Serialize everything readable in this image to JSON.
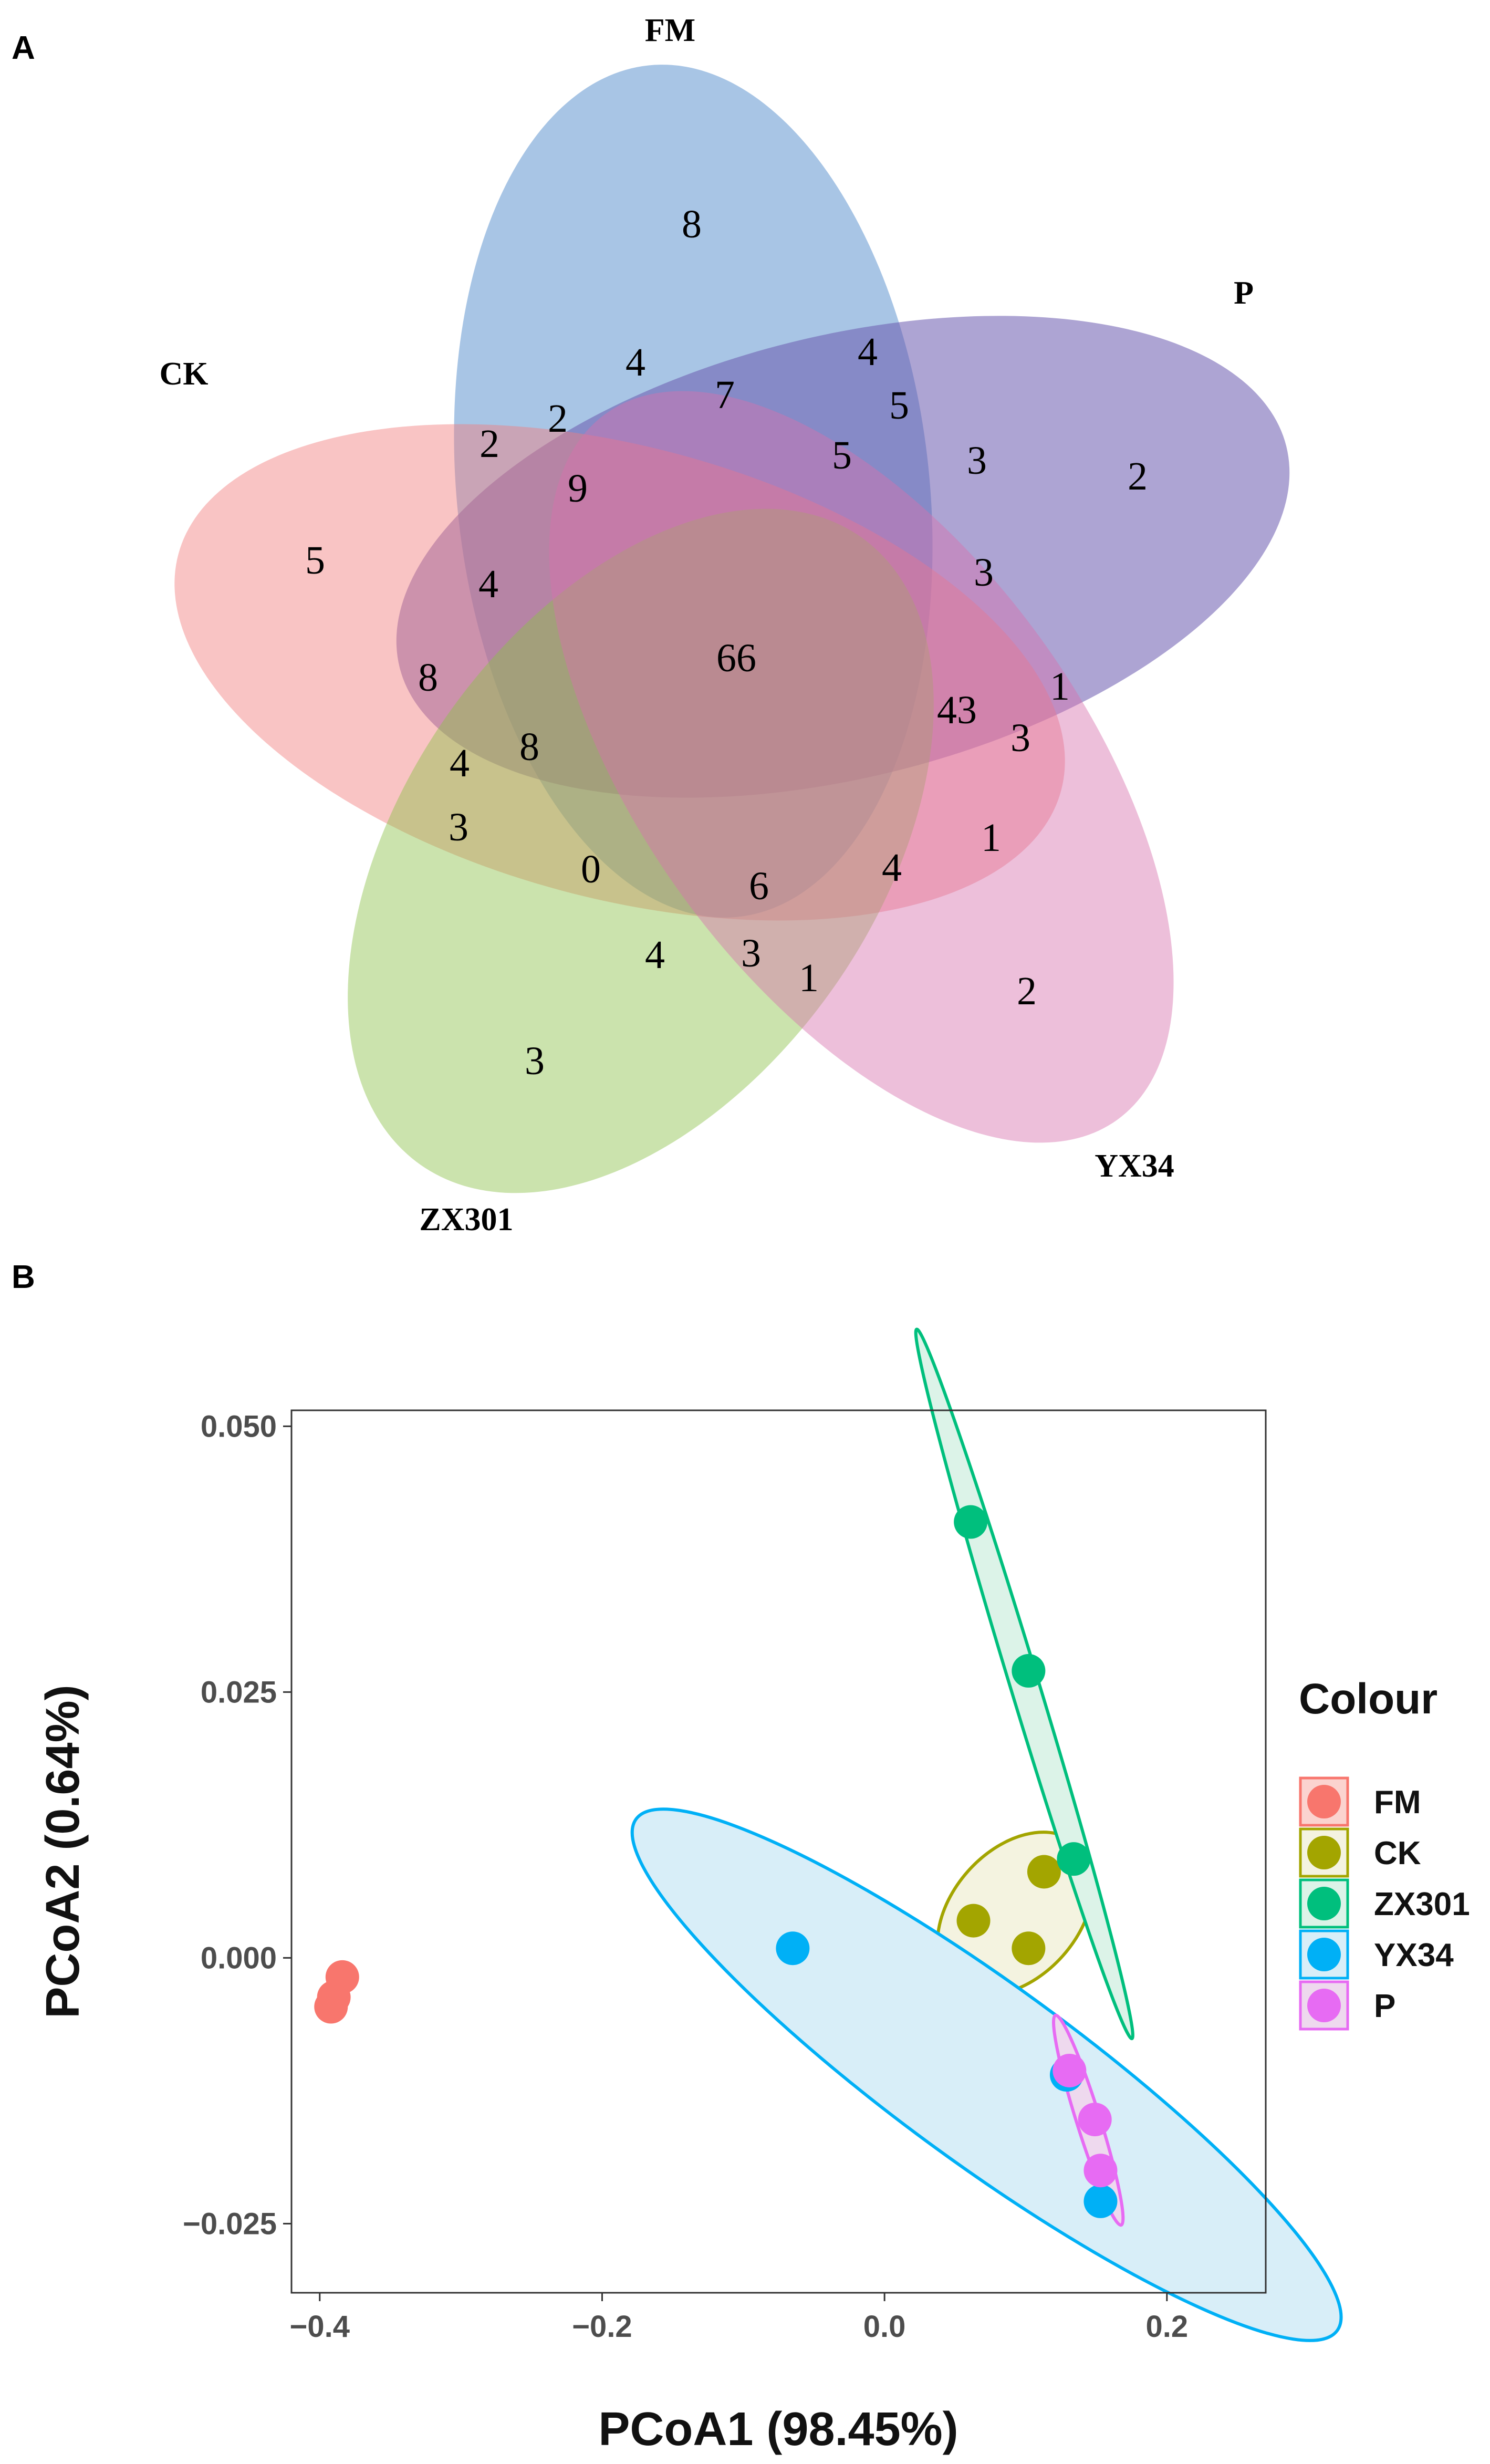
{
  "panel_a_label": "A",
  "panel_b_label": "B",
  "chart_data": [
    {
      "type": "venn",
      "sets": [
        {
          "name": "FM",
          "color": "#4a86c8"
        },
        {
          "name": "P",
          "color": "#6a5aae"
        },
        {
          "name": "CK",
          "color": "#f17c7c"
        },
        {
          "name": "ZX301",
          "color": "#8cc24a"
        },
        {
          "name": "YX34",
          "color": "#d870ac"
        }
      ],
      "region_values": [
        {
          "id": "fm-only",
          "value": "8"
        },
        {
          "id": "p-only",
          "value": "2"
        },
        {
          "id": "ck-only",
          "value": "5"
        },
        {
          "id": "zx301-only",
          "value": "3"
        },
        {
          "id": "yx34-only",
          "value": "2"
        },
        {
          "id": "core",
          "value": "66"
        },
        {
          "id": "r01",
          "value": "4"
        },
        {
          "id": "r02",
          "value": "4"
        },
        {
          "id": "r03",
          "value": "7"
        },
        {
          "id": "r04",
          "value": "5"
        },
        {
          "id": "r05",
          "value": "2"
        },
        {
          "id": "r06",
          "value": "2"
        },
        {
          "id": "r07",
          "value": "9"
        },
        {
          "id": "r08",
          "value": "5"
        },
        {
          "id": "r09",
          "value": "3"
        },
        {
          "id": "r10",
          "value": "3"
        },
        {
          "id": "r11",
          "value": "4"
        },
        {
          "id": "r12",
          "value": "8"
        },
        {
          "id": "r13",
          "value": "1"
        },
        {
          "id": "r14",
          "value": "43"
        },
        {
          "id": "r15",
          "value": "3"
        },
        {
          "id": "r16",
          "value": "4"
        },
        {
          "id": "r17",
          "value": "8"
        },
        {
          "id": "r18",
          "value": "3"
        },
        {
          "id": "r19",
          "value": "1"
        },
        {
          "id": "r20",
          "value": "0"
        },
        {
          "id": "r21",
          "value": "6"
        },
        {
          "id": "r22",
          "value": "4"
        },
        {
          "id": "r23",
          "value": "4"
        },
        {
          "id": "r24",
          "value": "3"
        },
        {
          "id": "r25",
          "value": "1"
        }
      ]
    },
    {
      "type": "scatter",
      "xlabel": "PCoA1 (98.45%)",
      "ylabel": "PCoA2 (0.64%)",
      "xlim": [
        -0.42,
        0.27
      ],
      "ylim": [
        -0.0315,
        0.0515
      ],
      "xticks": [
        -0.4,
        -0.2,
        0.0,
        0.2
      ],
      "xtick_labels": [
        "−0.4",
        "−0.2",
        "0.0",
        "0.2"
      ],
      "yticks": [
        0.05,
        0.025,
        0.0,
        -0.025
      ],
      "ytick_labels": [
        "0.050",
        "0.025",
        "0.000",
        "−0.025"
      ],
      "legend_title": "Colour",
      "legend_position": "right",
      "series": [
        {
          "name": "FM",
          "color": "#f8766d",
          "fill": "#fbd3cf",
          "points": [
            [
              -0.392,
              -0.0046
            ],
            [
              -0.39,
              -0.0037
            ],
            [
              -0.384,
              -0.0018
            ]
          ]
        },
        {
          "name": "CK",
          "color": "#a3a500",
          "fill": "#f4f3e0",
          "points": [
            [
              0.063,
              0.0035
            ],
            [
              0.102,
              0.0009
            ],
            [
              0.113,
              0.0081
            ]
          ]
        },
        {
          "name": "ZX301",
          "color": "#00bf7d",
          "fill": "#dcf3e8",
          "points": [
            [
              0.061,
              0.041
            ],
            [
              0.102,
              0.027
            ],
            [
              0.134,
              0.0093
            ]
          ]
        },
        {
          "name": "YX34",
          "color": "#00b0f6",
          "fill": "#d8eef8",
          "points": [
            [
              -0.065,
              0.0009
            ],
            [
              0.129,
              -0.011
            ],
            [
              0.153,
              -0.0229
            ]
          ]
        },
        {
          "name": "P",
          "color": "#e76bf3",
          "fill": "#eed9ee",
          "points": [
            [
              0.131,
              -0.0106
            ],
            [
              0.149,
              -0.0152
            ],
            [
              0.153,
              -0.02
            ]
          ]
        }
      ]
    }
  ]
}
